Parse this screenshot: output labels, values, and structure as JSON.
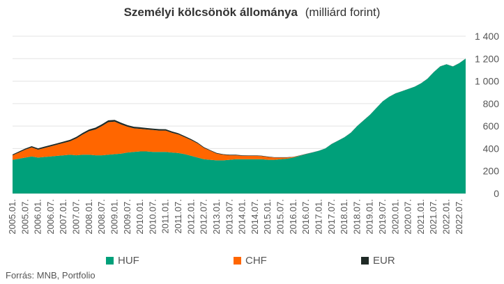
{
  "chart_data": {
    "type": "area",
    "title": "Személyi kölcsönök állománya",
    "unit": "(milliárd forint)",
    "stacked": true,
    "ylim": [
      0,
      1400
    ],
    "yticks": [
      "0",
      "200",
      "400",
      "600",
      "800",
      "1 000",
      "1 200",
      "1 400"
    ],
    "ytick_values": [
      0,
      200,
      400,
      600,
      800,
      1000,
      1200,
      1400
    ],
    "grid": "horizontal",
    "legend_position": "bottom",
    "x": [
      "2005.01",
      "2005.04",
      "2005.07",
      "2005.10",
      "2006.01",
      "2006.04",
      "2006.07",
      "2006.10",
      "2007.01",
      "2007.04",
      "2007.07",
      "2007.10",
      "2008.01",
      "2008.04",
      "2008.07",
      "2008.10",
      "2009.01",
      "2009.04",
      "2009.07",
      "2009.10",
      "2010.01",
      "2010.04",
      "2010.07",
      "2010.10",
      "2011.01",
      "2011.04",
      "2011.07",
      "2011.10",
      "2012.01",
      "2012.04",
      "2012.07",
      "2012.10",
      "2013.01",
      "2013.04",
      "2013.07",
      "2013.10",
      "2014.01",
      "2014.04",
      "2014.07",
      "2014.10",
      "2015.01",
      "2015.04",
      "2015.07",
      "2015.10",
      "2016.01",
      "2016.04",
      "2016.07",
      "2016.10",
      "2017.01",
      "2017.04",
      "2017.07",
      "2017.10",
      "2018.01",
      "2018.04",
      "2018.07",
      "2018.10",
      "2019.01",
      "2019.04",
      "2019.07",
      "2019.10",
      "2020.01",
      "2020.04",
      "2020.07",
      "2020.10",
      "2021.01",
      "2021.04",
      "2021.07",
      "2021.10",
      "2022.01",
      "2022.04",
      "2022.07",
      "2022.10"
    ],
    "xtick_labels": [
      "2005.01.",
      "2005.07.",
      "2006.01.",
      "2006.07.",
      "2007.01.",
      "2007.07.",
      "2008.01.",
      "2008.07.",
      "2009.01.",
      "2009.07.",
      "2010.01.",
      "2010.07.",
      "2011.01.",
      "2011.07.",
      "2012.01.",
      "2012.07.",
      "2013.01.",
      "2013.07.",
      "2014.01.",
      "2014.07.",
      "2015.01.",
      "2015.07.",
      "2016.01.",
      "2016.07.",
      "2017.01.",
      "2017.07.",
      "2018.01.",
      "2018.07.",
      "2019.01.",
      "2019.07.",
      "2020.01.",
      "2020.07.",
      "2021.01.",
      "2021.07.",
      "2022.01.",
      "2022.07."
    ],
    "series": [
      {
        "name": "HUF",
        "color": "#00a07a",
        "values": [
          300,
          310,
          320,
          330,
          320,
          325,
          330,
          335,
          340,
          345,
          340,
          345,
          345,
          340,
          340,
          345,
          350,
          355,
          365,
          370,
          375,
          375,
          370,
          370,
          370,
          365,
          360,
          350,
          335,
          320,
          305,
          300,
          295,
          295,
          300,
          305,
          305,
          305,
          305,
          305,
          300,
          300,
          305,
          310,
          320,
          335,
          350,
          365,
          380,
          400,
          440,
          470,
          500,
          540,
          600,
          650,
          700,
          760,
          820,
          860,
          890,
          910,
          930,
          950,
          980,
          1020,
          1080,
          1130,
          1150,
          1130,
          1160,
          1200
        ]
      },
      {
        "name": "CHF",
        "color": "#ff6600",
        "values": [
          40,
          55,
          70,
          80,
          70,
          80,
          90,
          100,
          110,
          120,
          150,
          180,
          210,
          230,
          260,
          290,
          290,
          260,
          230,
          210,
          200,
          195,
          195,
          190,
          190,
          175,
          165,
          150,
          140,
          125,
          100,
          80,
          60,
          50,
          40,
          35,
          30,
          30,
          30,
          28,
          25,
          20,
          15,
          10,
          5,
          2,
          1,
          0,
          0,
          0,
          0,
          0,
          0,
          0,
          0,
          0,
          0,
          0,
          0,
          0,
          0,
          0,
          0,
          0,
          0,
          0,
          0,
          0,
          0,
          0,
          0,
          0
        ]
      },
      {
        "name": "EUR",
        "color": "#1f2a26",
        "values": [
          8,
          9,
          10,
          11,
          12,
          12,
          12,
          12,
          12,
          13,
          14,
          15,
          15,
          16,
          16,
          16,
          15,
          15,
          14,
          14,
          14,
          13,
          13,
          13,
          12,
          12,
          11,
          10,
          9,
          8,
          7,
          6,
          6,
          5,
          5,
          5,
          5,
          4,
          4,
          4,
          4,
          3,
          3,
          3,
          2,
          2,
          2,
          1,
          1,
          1,
          1,
          1,
          1,
          1,
          1,
          1,
          1,
          1,
          1,
          1,
          1,
          1,
          1,
          1,
          1,
          1,
          1,
          1,
          1,
          1,
          1,
          1
        ]
      }
    ],
    "source": "Forrás: MNB, Portfolio"
  }
}
